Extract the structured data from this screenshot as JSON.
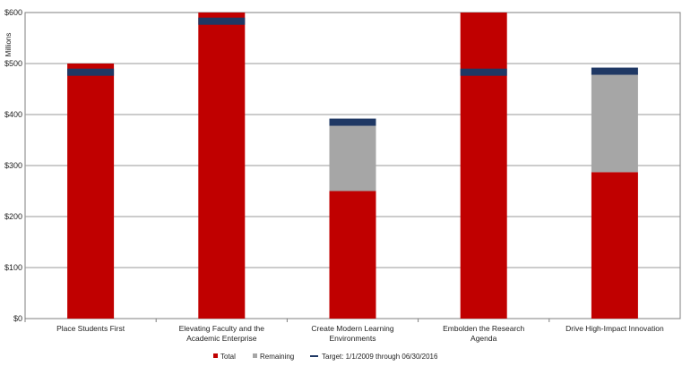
{
  "chart_data": {
    "type": "bar",
    "stacked": true,
    "title": "",
    "ylabel": "Millions",
    "xlabel": "",
    "ylim": [
      0,
      600
    ],
    "yticks": [
      0,
      100,
      200,
      300,
      400,
      500,
      600
    ],
    "ytick_labels": [
      "$0",
      "$100",
      "$200",
      "$300",
      "$400",
      "$500",
      "$600"
    ],
    "grid": true,
    "legend_position": "bottom",
    "categories": [
      [
        "Place Students First"
      ],
      [
        "Elevating Faculty and the",
        "Academic Enterprise"
      ],
      [
        "Create Modern Learning",
        "Environments"
      ],
      [
        "Embolden the Research",
        "Agenda"
      ],
      [
        "Drive High-Impact Innovation"
      ]
    ],
    "series": [
      {
        "name": "Total",
        "kind": "bar",
        "color": "#c00000",
        "values": [
          500,
          600,
          250,
          600,
          287
        ]
      },
      {
        "name": "Remaining",
        "kind": "bar",
        "color": "#a6a6a6",
        "values": [
          0,
          0,
          135,
          0,
          195
        ]
      },
      {
        "name": "Target: 1/1/2009 through 06/30/2016",
        "kind": "marker",
        "color": "#1f3864",
        "values": [
          483,
          583,
          385,
          483,
          485
        ]
      }
    ]
  }
}
